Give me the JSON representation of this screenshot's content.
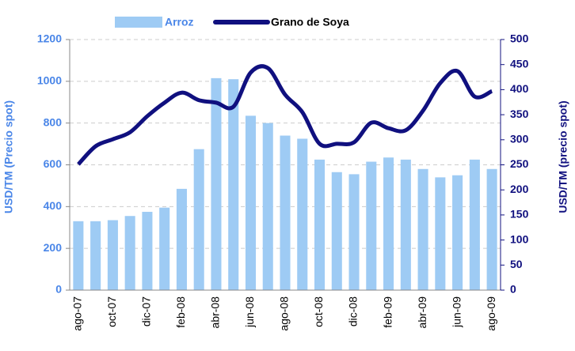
{
  "chart_data": {
    "type": "bar_line",
    "categories": [
      "ago-07",
      null,
      "oct-07",
      null,
      "dic-07",
      null,
      "feb-08",
      null,
      "abr-08",
      null,
      "jun-08",
      null,
      "ago-08",
      null,
      "oct-08",
      null,
      "dic-08",
      null,
      "feb-09",
      null,
      "abr-09",
      null,
      "jun-09",
      null,
      "ago-09"
    ],
    "series": [
      {
        "name": "Arroz",
        "type": "bar",
        "color": "#9ecbf4",
        "axis": "y",
        "values": [
          330,
          330,
          335,
          355,
          375,
          395,
          485,
          675,
          1015,
          1010,
          835,
          800,
          740,
          725,
          625,
          565,
          555,
          615,
          635,
          625,
          580,
          540,
          550,
          625,
          580
        ]
      },
      {
        "name": "Grano de Soya",
        "type": "line",
        "color": "#10107f",
        "axis": "y2",
        "values": [
          251,
          287,
          301,
          315,
          347,
          374,
          394,
          379,
          374,
          366,
          434,
          443,
          390,
          355,
          292,
          292,
          295,
          334,
          323,
          319,
          358,
          413,
          437,
          386,
          397
        ]
      }
    ],
    "ylabel": "USD/TM (Precio spot)",
    "y2label": "USD/TM (precio spot)",
    "ylim": [
      0,
      1200
    ],
    "yticks": [
      0,
      200,
      400,
      600,
      800,
      1000,
      1200
    ],
    "y2lim": [
      0,
      500
    ],
    "y2ticks": [
      0,
      50,
      100,
      150,
      200,
      250,
      300,
      350,
      400,
      450,
      500
    ],
    "ycolor": "#4a86e8",
    "y2color": "#10107f",
    "grid": true,
    "legend": "top"
  }
}
